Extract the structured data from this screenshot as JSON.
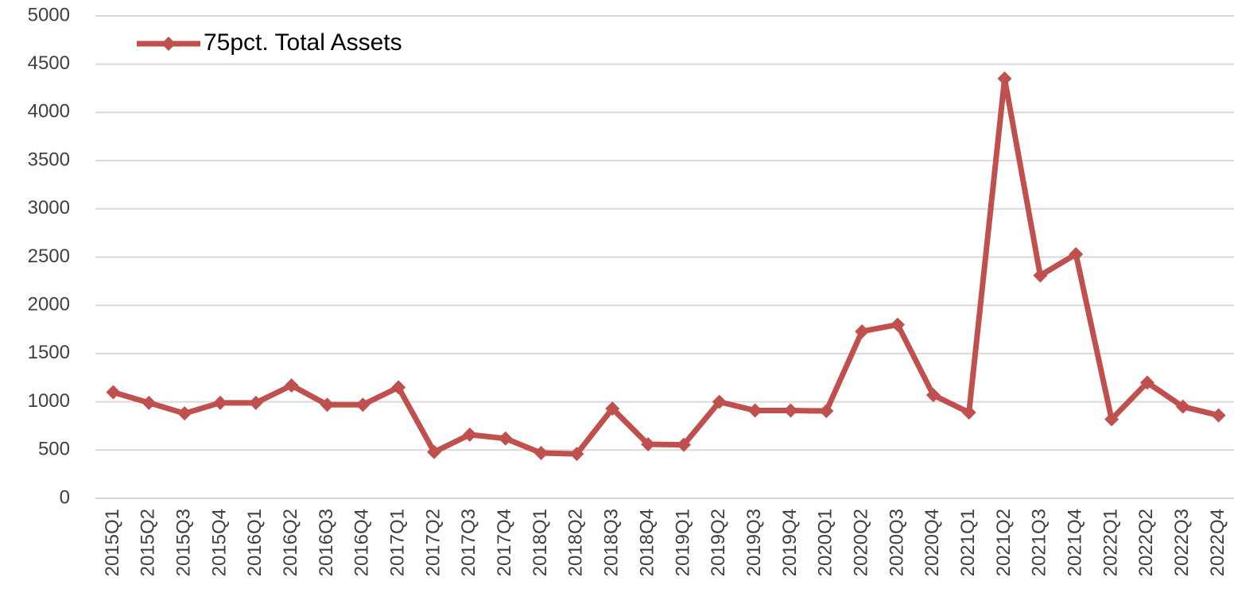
{
  "chart_data": {
    "type": "line",
    "categories": [
      "2015Q1",
      "2015Q2",
      "2015Q3",
      "2015Q4",
      "2016Q1",
      "2016Q2",
      "2016Q3",
      "2016Q4",
      "2017Q1",
      "2017Q2",
      "2017Q3",
      "2017Q4",
      "2018Q1",
      "2018Q2",
      "2018Q3",
      "2018Q4",
      "2019Q1",
      "2019Q2",
      "2019Q3",
      "2019Q4",
      "2020Q1",
      "2020Q2",
      "2020Q3",
      "2020Q4",
      "2021Q1",
      "2021Q2",
      "2021Q3",
      "2021Q4",
      "2022Q1",
      "2022Q2",
      "2022Q3",
      "2022Q4"
    ],
    "series": [
      {
        "name": "75pct. Total Assets",
        "color": "#c0504d",
        "values": [
          1100,
          990,
          880,
          990,
          990,
          1170,
          970,
          970,
          1150,
          480,
          660,
          620,
          470,
          460,
          930,
          560,
          555,
          1000,
          910,
          910,
          905,
          1730,
          1800,
          1070,
          890,
          4350,
          2310,
          2530,
          820,
          1200,
          950,
          860
        ]
      }
    ],
    "ylim": [
      0,
      5000
    ],
    "yticks": [
      0,
      500,
      1000,
      1500,
      2000,
      2500,
      3000,
      3500,
      4000,
      4500,
      5000
    ],
    "grid": true,
    "legend": "upper left"
  }
}
